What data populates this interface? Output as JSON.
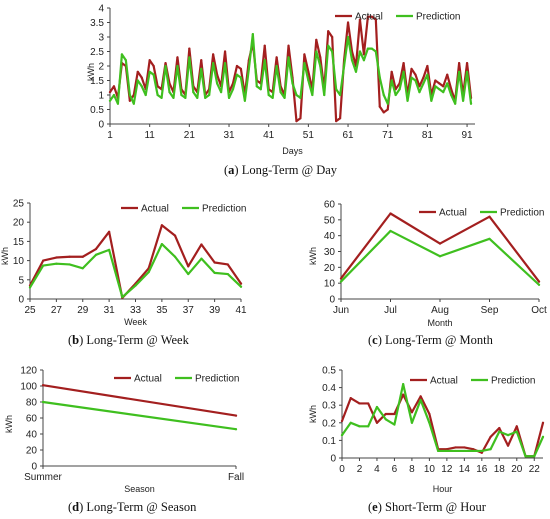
{
  "colors": {
    "actual": "#a31f1f",
    "prediction": "#3fbf1f"
  },
  "captions": [
    {
      "letter": "a",
      "text": "Long-Term @ Day"
    },
    {
      "letter": "b",
      "text": "Long-Term @ Week"
    },
    {
      "letter": "c",
      "text": "Long-Term @ Month"
    },
    {
      "letter": "d",
      "text": "Long-Term @ Season"
    },
    {
      "letter": "e",
      "text": "Short-Term @ Hour"
    }
  ],
  "chart_data": [
    {
      "id": "day",
      "type": "line",
      "xlabel": "Days",
      "ylabel": "kWh",
      "ylim": [
        0,
        4
      ],
      "yticks": [
        0,
        0.5,
        1,
        1.5,
        2,
        2.5,
        3,
        3.5,
        4
      ],
      "xlim": [
        1,
        93
      ],
      "xticks": [
        1,
        11,
        21,
        31,
        41,
        51,
        61,
        71,
        81,
        91
      ],
      "x": [
        1,
        2,
        3,
        4,
        5,
        6,
        7,
        8,
        9,
        10,
        11,
        12,
        13,
        14,
        15,
        16,
        17,
        18,
        19,
        20,
        21,
        22,
        23,
        24,
        25,
        26,
        27,
        28,
        29,
        30,
        31,
        32,
        33,
        34,
        35,
        36,
        37,
        38,
        39,
        40,
        41,
        42,
        43,
        44,
        45,
        46,
        47,
        48,
        49,
        50,
        51,
        52,
        53,
        54,
        55,
        56,
        57,
        58,
        59,
        60,
        61,
        62,
        63,
        64,
        65,
        66,
        67,
        68,
        69,
        70,
        71,
        72,
        73,
        74,
        75,
        76,
        77,
        78,
        79,
        80,
        81,
        82,
        83,
        84,
        85,
        86,
        87,
        88,
        89,
        90,
        91,
        92
      ],
      "series": [
        {
          "name": "Actual",
          "values": [
            1.1,
            1.3,
            0.9,
            2.1,
            2.0,
            0.8,
            1.0,
            1.8,
            1.6,
            1.2,
            2.2,
            2.0,
            1.3,
            1.2,
            2.1,
            1.4,
            1.1,
            2.3,
            1.2,
            1.0,
            2.6,
            1.3,
            1.1,
            2.2,
            1.0,
            1.2,
            2.4,
            1.7,
            1.3,
            2.5,
            1.1,
            1.4,
            2.0,
            1.9,
            1.0,
            2.2,
            2.8,
            1.5,
            1.4,
            2.7,
            1.2,
            1.1,
            2.3,
            1.3,
            1.0,
            2.7,
            1.6,
            0.1,
            0.2,
            2.4,
            1.8,
            1.2,
            2.9,
            2.3,
            1.2,
            3.2,
            3.0,
            0.1,
            0.2,
            2.2,
            3.5,
            2.5,
            2.0,
            3.6,
            2.4,
            3.7,
            3.7,
            3.6,
            0.6,
            0.4,
            0.5,
            1.8,
            1.2,
            1.4,
            2.1,
            1.0,
            1.9,
            1.7,
            1.3,
            1.6,
            2.0,
            1.0,
            1.5,
            1.4,
            1.3,
            1.7,
            1.2,
            0.8,
            2.1,
            1.0,
            2.1,
            0.9
          ]
        },
        {
          "name": "Prediction",
          "values": [
            0.8,
            1.0,
            0.7,
            2.4,
            2.2,
            1.0,
            0.7,
            1.5,
            1.3,
            1.0,
            1.8,
            1.7,
            1.0,
            0.9,
            2.0,
            1.1,
            0.9,
            2.0,
            1.0,
            0.9,
            2.3,
            1.1,
            0.9,
            1.9,
            0.9,
            1.0,
            2.1,
            1.4,
            1.1,
            2.1,
            0.9,
            1.2,
            1.7,
            1.6,
            0.8,
            1.9,
            3.1,
            1.3,
            1.2,
            2.2,
            1.0,
            0.9,
            2.0,
            1.1,
            0.9,
            2.3,
            1.4,
            1.0,
            0.9,
            2.1,
            1.5,
            1.0,
            2.5,
            2.0,
            1.0,
            2.7,
            2.5,
            1.2,
            1.0,
            2.0,
            3.0,
            2.2,
            1.8,
            2.5,
            2.2,
            2.6,
            2.6,
            2.5,
            1.6,
            1.0,
            0.7,
            1.5,
            1.0,
            1.2,
            1.8,
            0.8,
            1.6,
            1.5,
            1.1,
            1.4,
            1.7,
            0.8,
            1.3,
            1.2,
            1.1,
            1.4,
            1.0,
            0.7,
            1.8,
            0.8,
            1.8,
            0.7
          ]
        }
      ]
    },
    {
      "id": "week",
      "type": "line",
      "xlabel": "Week",
      "ylabel": "kWh",
      "ylim": [
        0,
        25
      ],
      "yticks": [
        0,
        5,
        10,
        15,
        20,
        25
      ],
      "xlim": [
        25,
        41
      ],
      "xticks": [
        25,
        27,
        29,
        31,
        33,
        35,
        37,
        39,
        41
      ],
      "x": [
        25,
        26,
        27,
        28,
        29,
        30,
        31,
        32,
        33,
        34,
        35,
        36,
        37,
        38,
        39,
        40,
        41
      ],
      "series": [
        {
          "name": "Actual",
          "values": [
            3.5,
            10.0,
            10.8,
            11.0,
            11.0,
            13.0,
            17.5,
            0.3,
            4.0,
            8.0,
            19.2,
            16.5,
            8.5,
            14.2,
            9.5,
            9.0,
            4.0
          ]
        },
        {
          "name": "Prediction",
          "values": [
            3.0,
            8.7,
            9.2,
            9.0,
            8.0,
            11.5,
            12.8,
            0.5,
            3.5,
            7.0,
            14.3,
            11.0,
            6.5,
            10.5,
            6.8,
            6.5,
            3.2
          ]
        }
      ]
    },
    {
      "id": "month",
      "type": "line",
      "xlabel": "Month",
      "ylabel": "kWh",
      "ylim": [
        0,
        60
      ],
      "yticks": [
        0,
        10,
        20,
        30,
        40,
        50,
        60
      ],
      "categories": [
        "Jun",
        "Jul",
        "Aug",
        "Sep",
        "Oct"
      ],
      "series": [
        {
          "name": "Actual",
          "values": [
            13,
            54,
            35,
            52,
            11
          ]
        },
        {
          "name": "Prediction",
          "values": [
            11,
            43,
            27,
            38,
            9
          ]
        }
      ]
    },
    {
      "id": "season",
      "type": "line",
      "xlabel": "Season",
      "ylabel": "kWh",
      "ylim": [
        0,
        120
      ],
      "yticks": [
        0,
        20,
        40,
        60,
        80,
        100,
        120
      ],
      "categories": [
        "Summer",
        "Fall"
      ],
      "series": [
        {
          "name": "Actual",
          "values": [
            101,
            63
          ]
        },
        {
          "name": "Prediction",
          "values": [
            80,
            46
          ]
        }
      ]
    },
    {
      "id": "hour",
      "type": "line",
      "xlabel": "Hour",
      "ylabel": "kWh",
      "ylim": [
        0,
        0.5
      ],
      "yticks": [
        0,
        0.1,
        0.2,
        0.3,
        0.4,
        0.5
      ],
      "xlim": [
        0,
        23
      ],
      "xticks": [
        0,
        2,
        4,
        6,
        8,
        10,
        12,
        14,
        16,
        18,
        20,
        22
      ],
      "x": [
        0,
        1,
        2,
        3,
        4,
        5,
        6,
        7,
        8,
        9,
        10,
        11,
        12,
        13,
        14,
        15,
        16,
        17,
        18,
        19,
        20,
        21,
        22,
        23
      ],
      "series": [
        {
          "name": "Actual",
          "values": [
            0.21,
            0.34,
            0.31,
            0.31,
            0.2,
            0.25,
            0.25,
            0.36,
            0.26,
            0.35,
            0.25,
            0.05,
            0.05,
            0.06,
            0.06,
            0.05,
            0.03,
            0.12,
            0.17,
            0.07,
            0.18,
            0.01,
            0.01,
            0.2
          ]
        },
        {
          "name": "Prediction",
          "values": [
            0.13,
            0.2,
            0.18,
            0.18,
            0.29,
            0.22,
            0.19,
            0.42,
            0.2,
            0.33,
            0.2,
            0.04,
            0.04,
            0.04,
            0.04,
            0.04,
            0.04,
            0.05,
            0.15,
            0.13,
            0.15,
            0.01,
            0.01,
            0.12
          ]
        }
      ]
    }
  ]
}
